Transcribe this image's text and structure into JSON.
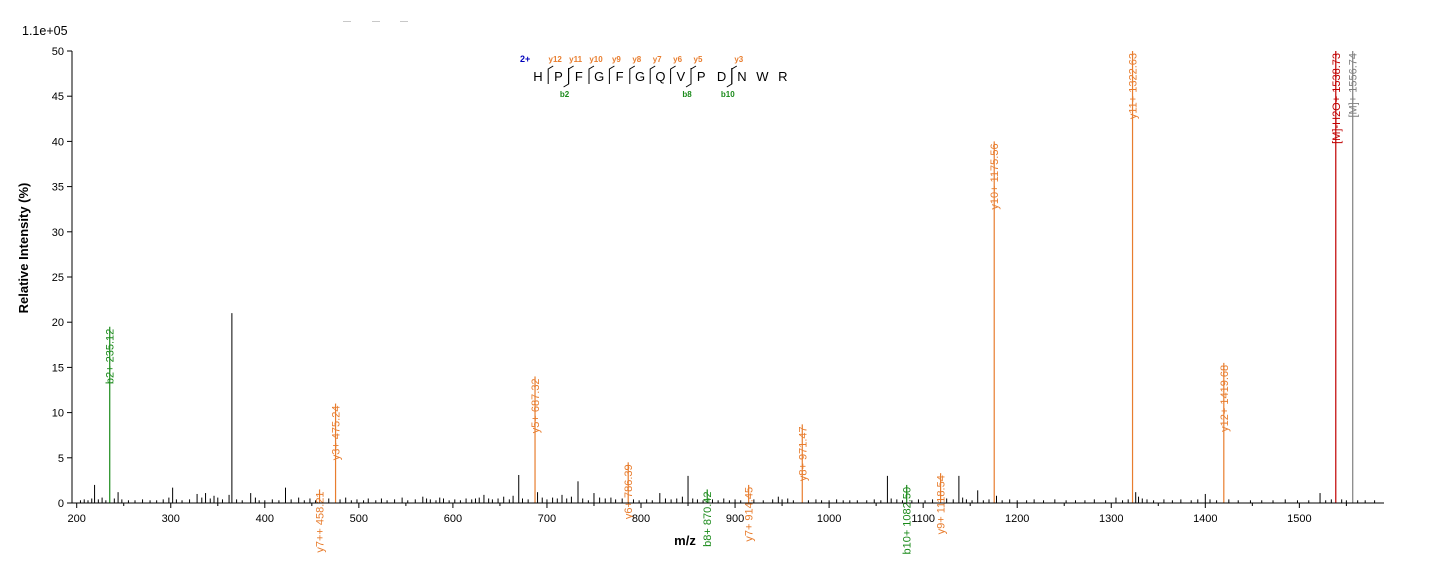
{
  "chart_data": {
    "type": "bar",
    "title": "",
    "scale_label": "1.1e+05",
    "xlabel": "m/z",
    "ylabel": "Relative   Intensity (%)",
    "xlim": [
      195,
      1590
    ],
    "ylim": [
      0,
      50
    ],
    "xticks": [
      200,
      300,
      400,
      500,
      600,
      700,
      800,
      900,
      1000,
      1100,
      1200,
      1300,
      1400,
      1500
    ],
    "yticks": [
      0,
      5,
      10,
      15,
      20,
      25,
      30,
      35,
      40,
      45,
      50
    ],
    "colors": {
      "y": "#e87d2e",
      "b": "#1a8a1a",
      "precursor_loss": "#c00000",
      "precursor": "#808080",
      "other": "#000000",
      "axis": "#000000",
      "charge": "#0000bb"
    },
    "labeled_peaks": [
      {
        "mz": 235.12,
        "intensity": 19.5,
        "label": "b2+ 235.12",
        "ion": "b"
      },
      {
        "mz": 458.21,
        "intensity": 1.5,
        "label": "y7++ 458.21",
        "ion": "y"
      },
      {
        "mz": 475.24,
        "intensity": 11.0,
        "label": "y3+ 475.24",
        "ion": "y"
      },
      {
        "mz": 687.32,
        "intensity": 14.0,
        "label": "y5+ 687.32",
        "ion": "y"
      },
      {
        "mz": 786.39,
        "intensity": 4.5,
        "label": "y6+ 786.39",
        "ion": "y"
      },
      {
        "mz": 870.42,
        "intensity": 1.5,
        "label": "b8+ 870.42",
        "ion": "b"
      },
      {
        "mz": 914.45,
        "intensity": 2.0,
        "label": "y7+ 914.45",
        "ion": "y"
      },
      {
        "mz": 971.47,
        "intensity": 8.7,
        "label": "y8+ 971.47",
        "ion": "y"
      },
      {
        "mz": 1082.5,
        "intensity": 2.0,
        "label": "b10+ 1082.50",
        "ion": "b"
      },
      {
        "mz": 1118.54,
        "intensity": 3.3,
        "label": "y9+ 1118.54",
        "ion": "y"
      },
      {
        "mz": 1175.56,
        "intensity": 40.0,
        "label": "y10+ 1175.56",
        "ion": "y"
      },
      {
        "mz": 1322.63,
        "intensity": 50.0,
        "label": "y11+ 1322.63",
        "ion": "y"
      },
      {
        "mz": 1419.68,
        "intensity": 15.5,
        "label": "y12+ 1419.68",
        "ion": "y"
      },
      {
        "mz": 1538.73,
        "intensity": 50.0,
        "label": "[M]-H2O+ 1538.73",
        "ion": "precursor_loss"
      },
      {
        "mz": 1556.74,
        "intensity": 50.0,
        "label": "[M]+ 1556.74",
        "ion": "precursor"
      }
    ],
    "unlabeled_peaks": [
      [
        204,
        0.3
      ],
      [
        208,
        0.4
      ],
      [
        212,
        0.3
      ],
      [
        216,
        0.5
      ],
      [
        219,
        2.0
      ],
      [
        223,
        0.4
      ],
      [
        227,
        0.6
      ],
      [
        231,
        0.3
      ],
      [
        240,
        0.5
      ],
      [
        244,
        1.2
      ],
      [
        248,
        0.4
      ],
      [
        255,
        0.3
      ],
      [
        262,
        0.3
      ],
      [
        270,
        0.4
      ],
      [
        278,
        0.3
      ],
      [
        285,
        0.3
      ],
      [
        292,
        0.4
      ],
      [
        298,
        0.6
      ],
      [
        302,
        1.7
      ],
      [
        306,
        0.4
      ],
      [
        312,
        0.3
      ],
      [
        320,
        0.4
      ],
      [
        328,
        1.0
      ],
      [
        333,
        0.6
      ],
      [
        337,
        1.1
      ],
      [
        342,
        0.5
      ],
      [
        346,
        0.8
      ],
      [
        350,
        0.6
      ],
      [
        355,
        0.4
      ],
      [
        362,
        0.9
      ],
      [
        365,
        21.0
      ],
      [
        370,
        0.4
      ],
      [
        376,
        0.3
      ],
      [
        385,
        1.1
      ],
      [
        390,
        0.6
      ],
      [
        394,
        0.3
      ],
      [
        400,
        0.3
      ],
      [
        408,
        0.4
      ],
      [
        415,
        0.3
      ],
      [
        422,
        1.7
      ],
      [
        428,
        0.4
      ],
      [
        436,
        0.6
      ],
      [
        442,
        0.3
      ],
      [
        448,
        0.5
      ],
      [
        454,
        0.3
      ],
      [
        468,
        0.5
      ],
      [
        480,
        0.4
      ],
      [
        486,
        0.6
      ],
      [
        492,
        0.3
      ],
      [
        498,
        0.4
      ],
      [
        505,
        0.3
      ],
      [
        510,
        0.5
      ],
      [
        518,
        0.3
      ],
      [
        524,
        0.5
      ],
      [
        530,
        0.3
      ],
      [
        538,
        0.4
      ],
      [
        546,
        0.6
      ],
      [
        552,
        0.3
      ],
      [
        560,
        0.4
      ],
      [
        568,
        0.7
      ],
      [
        572,
        0.5
      ],
      [
        576,
        0.4
      ],
      [
        582,
        0.3
      ],
      [
        586,
        0.6
      ],
      [
        590,
        0.5
      ],
      [
        596,
        0.3
      ],
      [
        602,
        0.4
      ],
      [
        608,
        0.3
      ],
      [
        614,
        0.5
      ],
      [
        620,
        0.4
      ],
      [
        624,
        0.5
      ],
      [
        628,
        0.6
      ],
      [
        633,
        0.9
      ],
      [
        638,
        0.5
      ],
      [
        642,
        0.4
      ],
      [
        648,
        0.5
      ],
      [
        654,
        0.7
      ],
      [
        660,
        0.4
      ],
      [
        664,
        0.8
      ],
      [
        670,
        3.1
      ],
      [
        674,
        0.5
      ],
      [
        680,
        0.4
      ],
      [
        690,
        1.2
      ],
      [
        695,
        0.6
      ],
      [
        700,
        0.4
      ],
      [
        706,
        0.6
      ],
      [
        711,
        0.5
      ],
      [
        716,
        0.9
      ],
      [
        721,
        0.5
      ],
      [
        726,
        0.7
      ],
      [
        733,
        2.4
      ],
      [
        738,
        0.5
      ],
      [
        744,
        0.3
      ],
      [
        750,
        1.1
      ],
      [
        756,
        0.6
      ],
      [
        762,
        0.5
      ],
      [
        768,
        0.6
      ],
      [
        773,
        0.4
      ],
      [
        780,
        0.5
      ],
      [
        792,
        0.4
      ],
      [
        798,
        0.3
      ],
      [
        806,
        0.4
      ],
      [
        812,
        0.3
      ],
      [
        820,
        1.1
      ],
      [
        826,
        0.5
      ],
      [
        832,
        0.4
      ],
      [
        838,
        0.5
      ],
      [
        844,
        0.7
      ],
      [
        850,
        3.0
      ],
      [
        855,
        0.5
      ],
      [
        860,
        0.4
      ],
      [
        866,
        0.3
      ],
      [
        876,
        0.4
      ],
      [
        882,
        0.3
      ],
      [
        888,
        0.5
      ],
      [
        894,
        0.3
      ],
      [
        900,
        0.4
      ],
      [
        906,
        0.3
      ],
      [
        920,
        0.4
      ],
      [
        930,
        0.3
      ],
      [
        940,
        0.4
      ],
      [
        946,
        0.7
      ],
      [
        950,
        0.4
      ],
      [
        956,
        0.5
      ],
      [
        962,
        0.3
      ],
      [
        978,
        0.3
      ],
      [
        986,
        0.4
      ],
      [
        992,
        0.3
      ],
      [
        1000,
        0.3
      ],
      [
        1008,
        0.4
      ],
      [
        1015,
        0.3
      ],
      [
        1022,
        0.3
      ],
      [
        1030,
        0.3
      ],
      [
        1040,
        0.3
      ],
      [
        1048,
        0.4
      ],
      [
        1055,
        0.3
      ],
      [
        1062,
        3.0
      ],
      [
        1066,
        0.5
      ],
      [
        1072,
        0.4
      ],
      [
        1078,
        0.3
      ],
      [
        1088,
        0.3
      ],
      [
        1095,
        0.4
      ],
      [
        1102,
        0.3
      ],
      [
        1110,
        0.4
      ],
      [
        1125,
        0.5
      ],
      [
        1132,
        0.4
      ],
      [
        1138,
        3.0
      ],
      [
        1142,
        0.6
      ],
      [
        1146,
        0.4
      ],
      [
        1152,
        0.3
      ],
      [
        1158,
        1.4
      ],
      [
        1164,
        0.3
      ],
      [
        1170,
        0.4
      ],
      [
        1178,
        0.8
      ],
      [
        1184,
        0.3
      ],
      [
        1192,
        0.4
      ],
      [
        1200,
        0.3
      ],
      [
        1210,
        0.3
      ],
      [
        1218,
        0.4
      ],
      [
        1228,
        0.3
      ],
      [
        1240,
        0.4
      ],
      [
        1252,
        0.3
      ],
      [
        1262,
        0.3
      ],
      [
        1272,
        0.3
      ],
      [
        1282,
        0.4
      ],
      [
        1294,
        0.3
      ],
      [
        1305,
        0.6
      ],
      [
        1312,
        0.3
      ],
      [
        1318,
        0.4
      ],
      [
        1326,
        1.2
      ],
      [
        1329,
        0.7
      ],
      [
        1333,
        0.5
      ],
      [
        1338,
        0.4
      ],
      [
        1345,
        0.3
      ],
      [
        1356,
        0.4
      ],
      [
        1365,
        0.3
      ],
      [
        1374,
        0.4
      ],
      [
        1385,
        0.3
      ],
      [
        1392,
        0.4
      ],
      [
        1400,
        1.0
      ],
      [
        1405,
        0.4
      ],
      [
        1412,
        0.3
      ],
      [
        1425,
        0.4
      ],
      [
        1435,
        0.3
      ],
      [
        1448,
        0.3
      ],
      [
        1460,
        0.3
      ],
      [
        1472,
        0.3
      ],
      [
        1485,
        0.4
      ],
      [
        1498,
        0.3
      ],
      [
        1510,
        0.3
      ],
      [
        1522,
        1.1
      ],
      [
        1528,
        0.3
      ],
      [
        1534,
        0.4
      ],
      [
        1545,
        0.4
      ],
      [
        1550,
        0.3
      ],
      [
        1562,
        0.3
      ],
      [
        1570,
        0.3
      ],
      [
        1580,
        0.3
      ]
    ],
    "sequence": {
      "charge": "2+",
      "residues": [
        "H",
        "P",
        "F",
        "G",
        "F",
        "G",
        "Q",
        "V",
        "P",
        "D",
        "N",
        "W",
        "R"
      ],
      "y_ions": [
        {
          "label": "y12",
          "after": 1
        },
        {
          "label": "y11",
          "after": 2
        },
        {
          "label": "y10",
          "after": 3
        },
        {
          "label": "y9",
          "after": 4
        },
        {
          "label": "y8",
          "after": 5
        },
        {
          "label": "y7",
          "after": 6
        },
        {
          "label": "y6",
          "after": 7
        },
        {
          "label": "y5",
          "after": 8
        },
        {
          "label": "y3",
          "after": 10
        }
      ],
      "b_ions": [
        {
          "label": "b2",
          "after": 2
        },
        {
          "label": "b8",
          "after": 8
        },
        {
          "label": "b10",
          "after": 10
        }
      ]
    }
  }
}
